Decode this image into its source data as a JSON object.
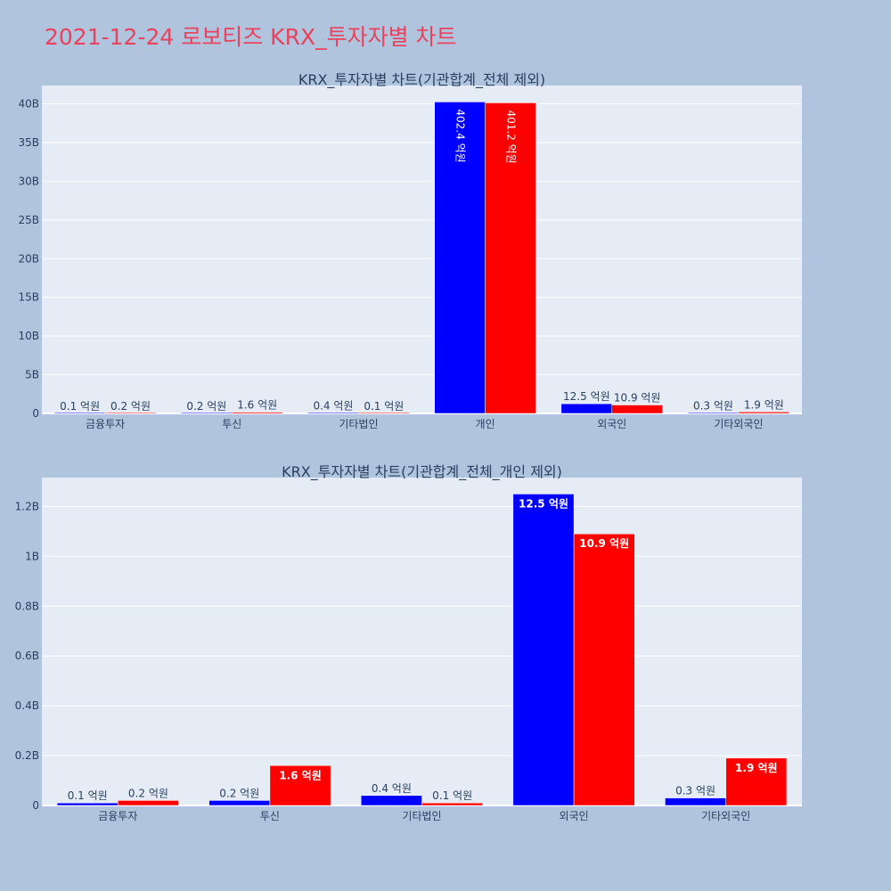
{
  "page": {
    "title": "2021-12-24 로보티즈 KRX_투자자별 차트"
  },
  "colors": {
    "series_a": "#0000ff",
    "series_b": "#ff0000",
    "title": "#e8425c",
    "plot_bg": "#e5ecf6",
    "page_bg": "#b0c4de"
  },
  "chart_data": [
    {
      "type": "bar",
      "title": "KRX_투자자별 차트(기관합계_전체 제외)",
      "categories": [
        "금융투자",
        "투신",
        "기타법인",
        "개인",
        "외국인",
        "기타외국인"
      ],
      "series": [
        {
          "name": "series_a",
          "values": [
            10000000,
            20000000,
            40000000,
            40240000000,
            1250000000,
            30000000
          ],
          "labels": [
            "0.1 억원",
            "0.2 억원",
            "0.4 억원",
            "402.4 억원",
            "12.5 억원",
            "0.3 억원"
          ]
        },
        {
          "name": "series_b",
          "values": [
            20000000,
            160000000,
            10000000,
            40120000000,
            1090000000,
            190000000
          ],
          "labels": [
            "0.2 억원",
            "1.6 억원",
            "0.1 억원",
            "401.2 억원",
            "10.9 억원",
            "1.9 억원"
          ]
        }
      ],
      "yticks": [
        0,
        5000000000,
        10000000000,
        15000000000,
        20000000000,
        25000000000,
        30000000000,
        35000000000,
        40000000000
      ],
      "yticklabels": [
        "0",
        "5B",
        "10B",
        "15B",
        "20B",
        "25B",
        "30B",
        "35B",
        "40B"
      ],
      "ylim": [
        0,
        42360000000
      ],
      "xlabel": "",
      "ylabel": ""
    },
    {
      "type": "bar",
      "title": "KRX_투자자별 차트(기관합계_전체_개인 제외)",
      "categories": [
        "금융투자",
        "투신",
        "기타법인",
        "외국인",
        "기타외국인"
      ],
      "series": [
        {
          "name": "series_a",
          "values": [
            10000000,
            20000000,
            40000000,
            1250000000,
            30000000
          ],
          "labels": [
            "0.1 억원",
            "0.2 억원",
            "0.4 억원",
            "12.5 억원",
            "0.3 억원"
          ]
        },
        {
          "name": "series_b",
          "values": [
            20000000,
            160000000,
            10000000,
            1090000000,
            190000000
          ],
          "labels": [
            "0.2 억원",
            "1.6 억원",
            "0.1 억원",
            "10.9 억원",
            "1.9 억원"
          ]
        }
      ],
      "yticks": [
        0,
        200000000,
        400000000,
        600000000,
        800000000,
        1000000000,
        1200000000
      ],
      "yticklabels": [
        "0",
        "0.2B",
        "0.4B",
        "0.6B",
        "0.8B",
        "1B",
        "1.2B"
      ],
      "ylim": [
        0,
        1316000000
      ],
      "xlabel": "",
      "ylabel": ""
    }
  ]
}
